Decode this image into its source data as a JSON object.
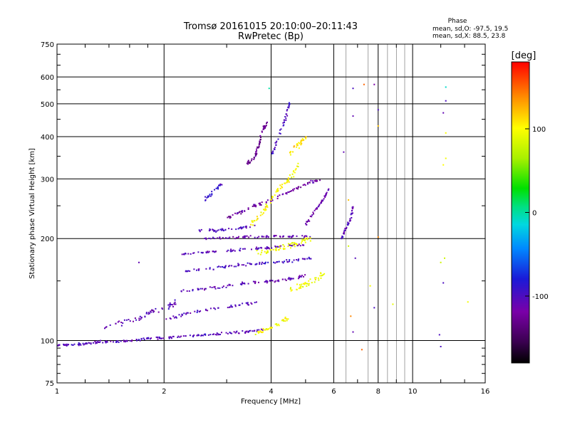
{
  "chart_data": {
    "type": "scatter",
    "title": "Tromsø 20161015 20:10:00–20:11:43",
    "subtitle": "RwPretec (Bp)",
    "xlabel": "Frequency [MHz]",
    "ylabel": "Stationary phase Virtual Height [km]",
    "x_scale": "log",
    "y_scale": "log",
    "xlim": [
      1,
      16
    ],
    "ylim": [
      75,
      750
    ],
    "x_ticks": [
      1,
      2,
      4,
      6,
      8,
      10,
      16
    ],
    "y_ticks": [
      75,
      100,
      200,
      300,
      400,
      500,
      600,
      750
    ],
    "x_gridlines": [
      2,
      4,
      6,
      8,
      10
    ],
    "y_gridlines": [
      100,
      200,
      300,
      400,
      500,
      600
    ],
    "grid": true,
    "phase_stats": {
      "heading": "Phase",
      "line_o": "mean, sd,O: -97.5, 19.5",
      "line_x": "mean, sd,X:  88.5, 23.8"
    },
    "colorbar": {
      "label": "[deg]",
      "ticks": [
        100,
        0,
        -100
      ],
      "range": [
        -180,
        180
      ],
      "colormap": "rainbow (black-purple-blue-cyan-green-yellow-orange-red)"
    },
    "series": [
      {
        "traces": [
          {
            "points": [
              [
                1.0,
                97
              ],
              [
                1.1,
                97
              ],
              [
                1.2,
                98
              ],
              [
                1.3,
                99
              ],
              [
                1.45,
                99
              ],
              [
                1.6,
                100
              ],
              [
                1.8,
                101
              ],
              [
                2.0,
                102
              ],
              [
                2.3,
                103
              ],
              [
                2.6,
                104
              ],
              [
                3.0,
                105
              ],
              [
                3.4,
                106
              ],
              [
                3.8,
                108
              ]
            ],
            "phase": -105,
            "jitter": 0.012
          },
          {
            "points": [
              [
                1.35,
                110
              ],
              [
                1.6,
                115
              ],
              [
                1.8,
                120
              ],
              [
                2.0,
                125
              ],
              [
                2.2,
                130
              ]
            ],
            "phase": -110,
            "jitter": 0.03
          },
          {
            "points": [
              [
                2.0,
                115
              ],
              [
                2.3,
                120
              ],
              [
                2.7,
                124
              ],
              [
                3.2,
                127
              ],
              [
                3.7,
                130
              ]
            ],
            "phase": -105,
            "jitter": 0.015
          },
          {
            "points": [
              [
                2.2,
                140
              ],
              [
                2.6,
                142
              ],
              [
                3.0,
                145
              ],
              [
                3.5,
                148
              ],
              [
                4.0,
                150
              ],
              [
                4.5,
                152
              ],
              [
                5.0,
                155
              ]
            ],
            "phase": -110,
            "jitter": 0.015
          },
          {
            "points": [
              [
                2.3,
                160
              ],
              [
                2.7,
                163
              ],
              [
                3.1,
                166
              ],
              [
                3.6,
                168
              ],
              [
                4.1,
                170
              ],
              [
                4.6,
                172
              ],
              [
                5.2,
                175
              ]
            ],
            "phase": -100,
            "jitter": 0.015
          },
          {
            "points": [
              [
                2.2,
                180
              ],
              [
                2.6,
                182
              ],
              [
                3.0,
                184
              ],
              [
                3.4,
                186
              ],
              [
                3.9,
                188
              ],
              [
                4.4,
                190
              ],
              [
                5.0,
                192
              ]
            ],
            "phase": -105,
            "jitter": 0.012
          },
          {
            "points": [
              [
                2.6,
                200
              ],
              [
                3.0,
                201
              ],
              [
                3.4,
                202
              ],
              [
                3.9,
                203
              ],
              [
                4.5,
                203
              ],
              [
                5.2,
                203
              ]
            ],
            "phase": -110,
            "jitter": 0.012
          },
          {
            "points": [
              [
                2.5,
                212
              ],
              [
                2.8,
                211
              ],
              [
                3.2,
                214
              ],
              [
                3.6,
                218
              ]
            ],
            "phase": -100,
            "jitter": 0.012
          },
          {
            "points": [
              [
                2.6,
                260
              ],
              [
                2.8,
                280
              ],
              [
                2.9,
                290
              ]
            ],
            "phase": -95,
            "jitter": 0.02
          },
          {
            "points": [
              [
                3.0,
                230
              ],
              [
                3.3,
                240
              ],
              [
                3.6,
                250
              ],
              [
                4.0,
                260
              ],
              [
                4.5,
                275
              ],
              [
                5.0,
                290
              ],
              [
                5.5,
                300
              ]
            ],
            "phase": -120,
            "jitter": 0.015
          },
          {
            "points": [
              [
                3.4,
                330
              ],
              [
                3.6,
                350
              ],
              [
                3.7,
                380
              ],
              [
                3.8,
                420
              ],
              [
                3.9,
                440
              ]
            ],
            "phase": -130,
            "jitter": 0.02
          },
          {
            "points": [
              [
                4.0,
                350
              ],
              [
                4.2,
                400
              ],
              [
                4.4,
                460
              ],
              [
                4.5,
                500
              ]
            ],
            "phase": -100,
            "jitter": 0.02
          },
          {
            "points": [
              [
                5.0,
                220
              ],
              [
                5.3,
                240
              ],
              [
                5.6,
                260
              ],
              [
                5.8,
                280
              ]
            ],
            "phase": -115,
            "jitter": 0.015
          },
          {
            "points": [
              [
                6.3,
                200
              ],
              [
                6.5,
                215
              ],
              [
                6.7,
                230
              ],
              [
                6.8,
                250
              ]
            ],
            "phase": -105,
            "jitter": 0.015
          },
          {
            "points": [
              [
                3.5,
                220
              ],
              [
                3.8,
                240
              ],
              [
                4.0,
                260
              ],
              [
                4.2,
                280
              ],
              [
                4.5,
                300
              ],
              [
                4.8,
                330
              ]
            ],
            "phase": 100,
            "jitter": 0.03
          },
          {
            "points": [
              [
                3.6,
                180
              ],
              [
                4.0,
                185
              ],
              [
                4.4,
                190
              ],
              [
                4.8,
                195
              ],
              [
                5.2,
                200
              ]
            ],
            "phase": 95,
            "jitter": 0.03
          },
          {
            "points": [
              [
                3.6,
                105
              ],
              [
                3.9,
                108
              ],
              [
                4.2,
                112
              ],
              [
                4.5,
                118
              ]
            ],
            "phase": 100,
            "jitter": 0.02
          },
          {
            "points": [
              [
                4.5,
                140
              ],
              [
                4.9,
                145
              ],
              [
                5.3,
                150
              ],
              [
                5.7,
                158
              ]
            ],
            "phase": 95,
            "jitter": 0.03
          },
          {
            "points": [
              [
                4.5,
                360
              ],
              [
                4.8,
                380
              ],
              [
                5.0,
                400
              ]
            ],
            "phase": 110,
            "jitter": 0.03
          }
        ],
        "isolated_points": [
          [
            3.95,
            555,
            0
          ],
          [
            6.8,
            555,
            -100
          ],
          [
            7.3,
            570,
            150
          ],
          [
            7.8,
            570,
            -120
          ],
          [
            8.0,
            480,
            -100
          ],
          [
            8.0,
            430,
            120
          ],
          [
            6.8,
            460,
            -110
          ],
          [
            12.4,
            560,
            -10
          ],
          [
            12.4,
            510,
            -100
          ],
          [
            12.2,
            470,
            -110
          ],
          [
            12.4,
            410,
            100
          ],
          [
            12.4,
            345,
            95
          ],
          [
            12.2,
            330,
            100
          ],
          [
            12.3,
            175,
            80
          ],
          [
            12.0,
            170,
            80
          ],
          [
            12.2,
            148,
            -100
          ],
          [
            14.3,
            130,
            95
          ],
          [
            11.9,
            104,
            -100
          ],
          [
            12.0,
            96,
            -100
          ],
          [
            7.2,
            94,
            150
          ],
          [
            6.7,
            118,
            140
          ],
          [
            6.8,
            106,
            -110
          ],
          [
            7.8,
            125,
            -100
          ],
          [
            8.8,
            128,
            90
          ],
          [
            7.6,
            145,
            95
          ],
          [
            8.0,
            202,
            140
          ],
          [
            6.4,
            360,
            -110
          ],
          [
            6.6,
            260,
            120
          ],
          [
            1.7,
            170,
            -110
          ],
          [
            6.6,
            190,
            80
          ],
          [
            6.9,
            175,
            -105
          ]
        ]
      }
    ]
  }
}
